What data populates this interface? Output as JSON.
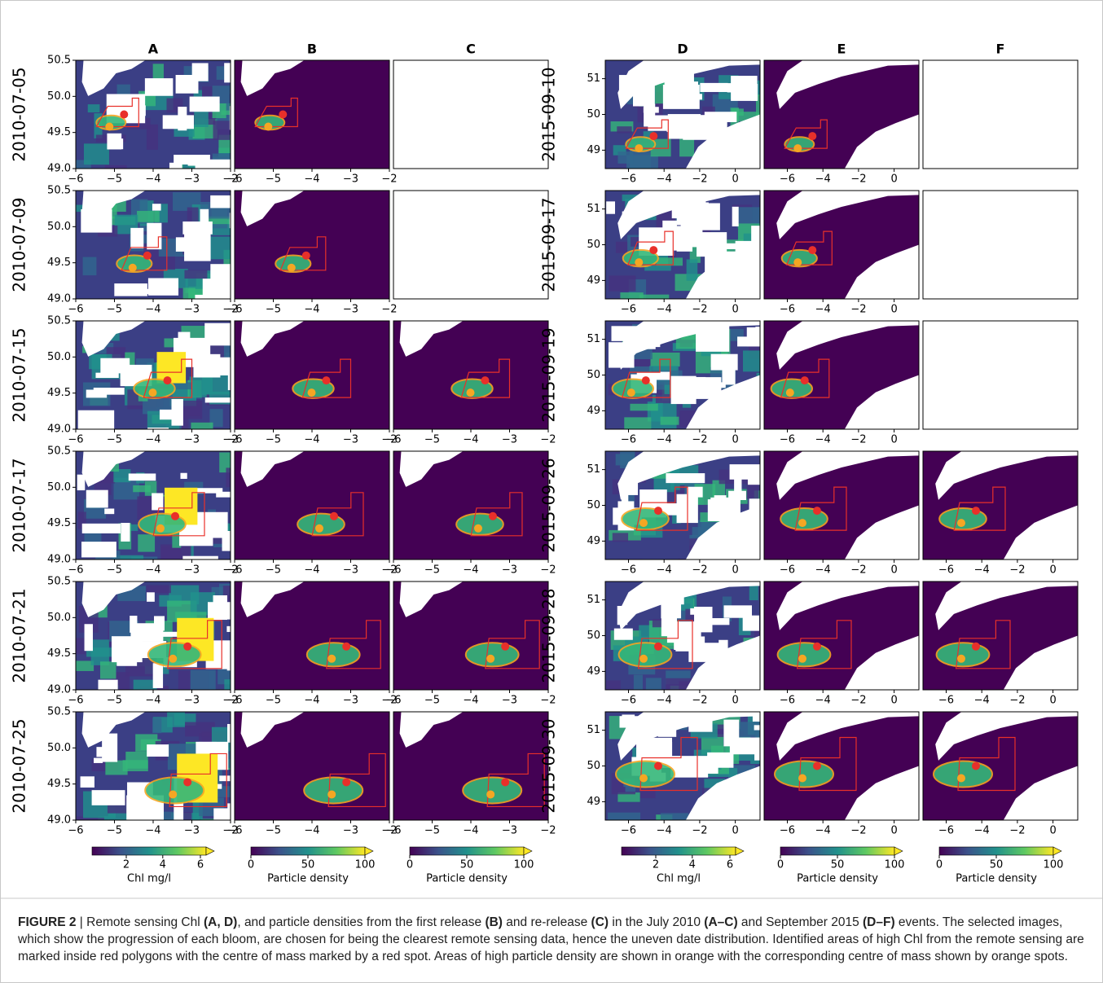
{
  "figure": {
    "columns": [
      "A",
      "B",
      "C",
      "D",
      "E",
      "F"
    ],
    "left": {
      "rows": [
        "2010-07-05",
        "2010-07-09",
        "2010-07-15",
        "2010-07-17",
        "2010-07-21",
        "2010-07-25"
      ],
      "xticks": [
        "−6",
        "−5",
        "−4",
        "−3",
        "−2"
      ],
      "yticks": [
        "50.5",
        "50.0",
        "49.5",
        "49.0"
      ]
    },
    "right": {
      "rows": [
        "2015-09-10",
        "2015-09-17",
        "2015-09-19",
        "2015-09-26",
        "2015-09-28",
        "2015-09-30"
      ],
      "xticks": [
        "−6",
        "−4",
        "−2",
        "0"
      ],
      "yticks": [
        "51",
        "50",
        "49"
      ]
    },
    "colorbars": [
      {
        "label": "Chl mg/l",
        "ticks": [
          "2",
          "4",
          "6"
        ]
      },
      {
        "label": "Particle density",
        "ticks": [
          "0",
          "50",
          "100"
        ]
      }
    ],
    "caption": [
      {
        "text": "FIGURE 2",
        "bold": true
      },
      {
        "text": " | Remote sensing Chl ",
        "bold": false
      },
      {
        "text": "(A, D)",
        "bold": true
      },
      {
        "text": ", and particle densities from the first release ",
        "bold": false
      },
      {
        "text": "(B)",
        "bold": true
      },
      {
        "text": " and re-release ",
        "bold": false
      },
      {
        "text": "(C)",
        "bold": true
      },
      {
        "text": " in the July 2010 ",
        "bold": false
      },
      {
        "text": "(A–C)",
        "bold": true
      },
      {
        "text": " and September 2015 ",
        "bold": false
      },
      {
        "text": "(D–F)",
        "bold": true
      },
      {
        "text": " events. The selected images, which show the progression of each bloom, are chosen for being the clearest remote sensing data, hence the uneven date distribution. Identified areas of high Chl from the remote sensing are marked inside red polygons with the centre of mass marked by a red spot. Areas of high particle density are shown in orange with the corresponding centre of mass shown by orange spots.",
        "bold": false
      }
    ]
  }
}
